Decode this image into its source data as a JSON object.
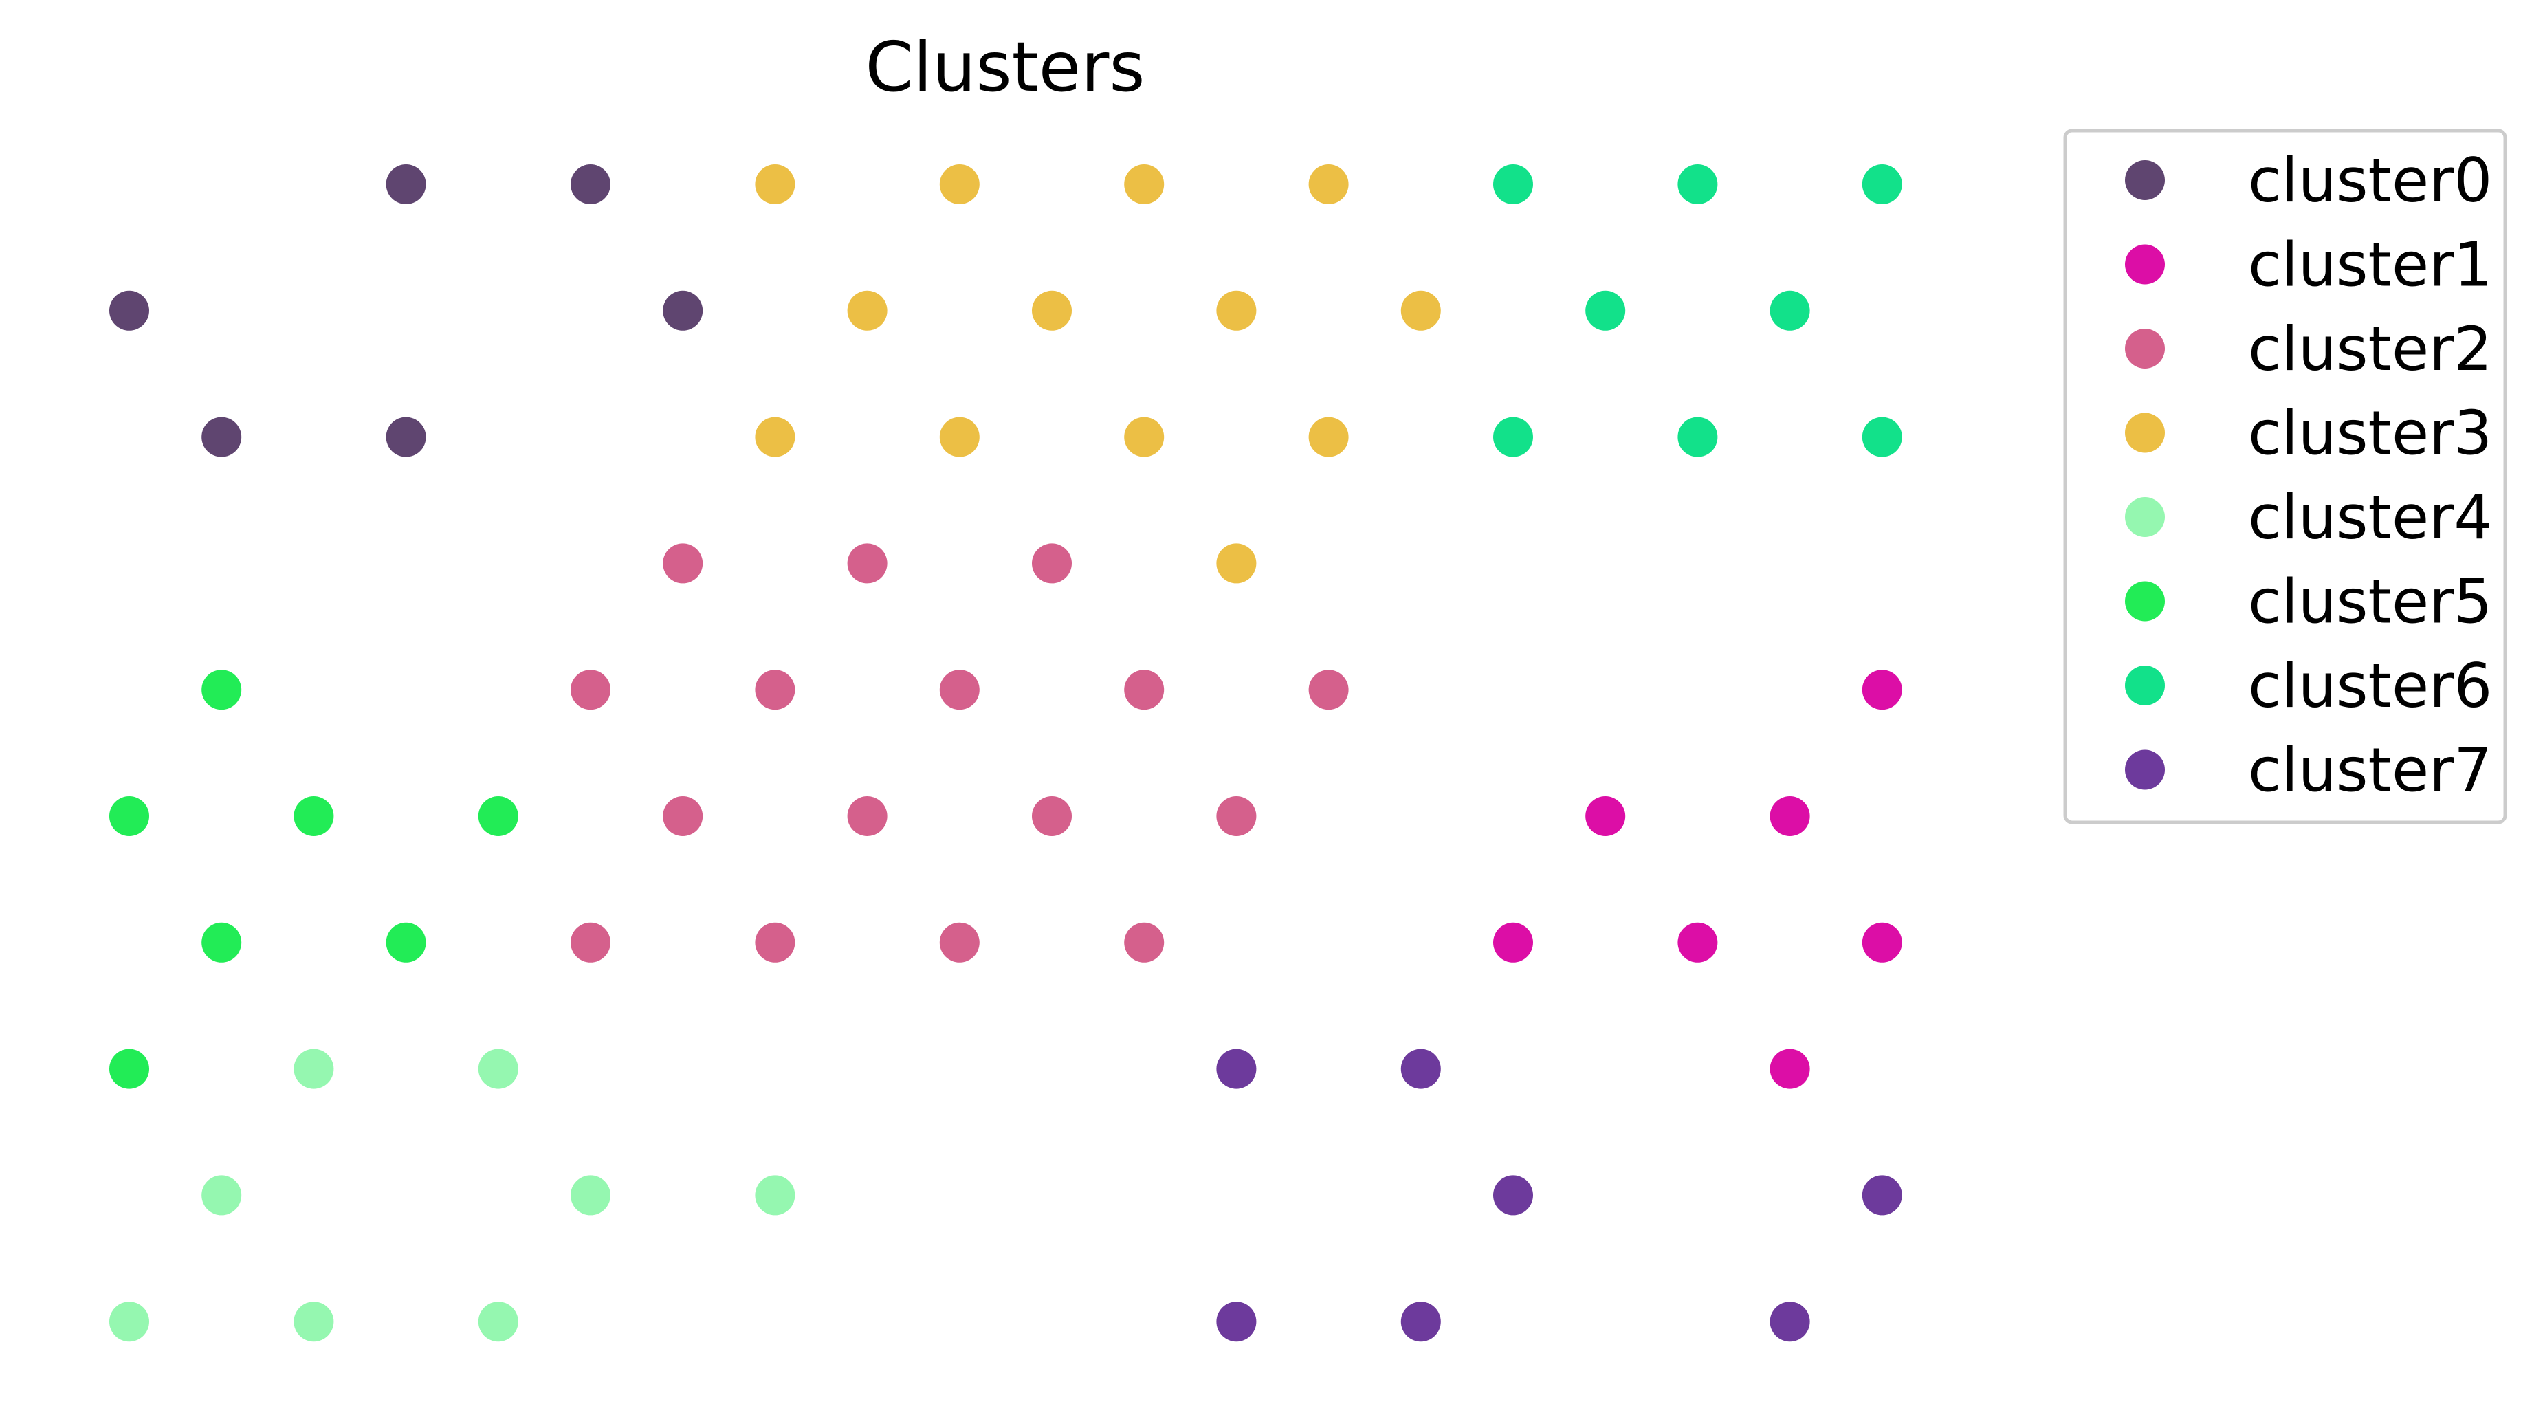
{
  "chart_data": {
    "type": "scatter",
    "title": "Clusters",
    "xlabel": "",
    "ylabel": "",
    "axes_visible": false,
    "grid": false,
    "legend_position": "top-right, outside plot",
    "series": [
      {
        "name": "cluster0",
        "color": "#5f4570",
        "points": [
          [
            3,
            10
          ],
          [
            5,
            10
          ],
          [
            0,
            9
          ],
          [
            6,
            9
          ],
          [
            1,
            8
          ],
          [
            3,
            8
          ]
        ]
      },
      {
        "name": "cluster1",
        "color": "#dc0ea6",
        "points": [
          [
            19,
            6
          ],
          [
            16,
            5
          ],
          [
            18,
            5
          ],
          [
            15,
            4
          ],
          [
            17,
            4
          ],
          [
            19,
            4
          ],
          [
            18,
            3
          ]
        ]
      },
      {
        "name": "cluster2",
        "color": "#d5608c",
        "points": [
          [
            6,
            7
          ],
          [
            8,
            7
          ],
          [
            10,
            7
          ],
          [
            5,
            6
          ],
          [
            7,
            6
          ],
          [
            9,
            6
          ],
          [
            11,
            6
          ],
          [
            13,
            6
          ],
          [
            6,
            5
          ],
          [
            8,
            5
          ],
          [
            10,
            5
          ],
          [
            12,
            5
          ],
          [
            5,
            4
          ],
          [
            7,
            4
          ],
          [
            9,
            4
          ],
          [
            11,
            4
          ]
        ]
      },
      {
        "name": "cluster3",
        "color": "#ecbf45",
        "points": [
          [
            7,
            10
          ],
          [
            9,
            10
          ],
          [
            11,
            10
          ],
          [
            13,
            10
          ],
          [
            8,
            9
          ],
          [
            10,
            9
          ],
          [
            12,
            9
          ],
          [
            14,
            9
          ],
          [
            7,
            8
          ],
          [
            9,
            8
          ],
          [
            11,
            8
          ],
          [
            13,
            8
          ],
          [
            12,
            7
          ]
        ]
      },
      {
        "name": "cluster4",
        "color": "#95f7b0",
        "points": [
          [
            2,
            3
          ],
          [
            4,
            3
          ],
          [
            1,
            2
          ],
          [
            5,
            2
          ],
          [
            7,
            2
          ],
          [
            0,
            1
          ],
          [
            2,
            1
          ],
          [
            4,
            1
          ]
        ]
      },
      {
        "name": "cluster5",
        "color": "#22ec56",
        "points": [
          [
            1,
            6
          ],
          [
            0,
            5
          ],
          [
            2,
            5
          ],
          [
            4,
            5
          ],
          [
            1,
            4
          ],
          [
            3,
            4
          ],
          [
            0,
            3
          ]
        ]
      },
      {
        "name": "cluster6",
        "color": "#12e18a",
        "points": [
          [
            15,
            10
          ],
          [
            17,
            10
          ],
          [
            19,
            10
          ],
          [
            16,
            9
          ],
          [
            18,
            9
          ],
          [
            15,
            8
          ],
          [
            17,
            8
          ],
          [
            19,
            8
          ]
        ]
      },
      {
        "name": "cluster7",
        "color": "#6d3a9c",
        "points": [
          [
            12,
            3
          ],
          [
            14,
            3
          ],
          [
            15,
            2
          ],
          [
            19,
            2
          ],
          [
            12,
            1
          ],
          [
            14,
            1
          ],
          [
            18,
            1
          ]
        ]
      }
    ]
  }
}
